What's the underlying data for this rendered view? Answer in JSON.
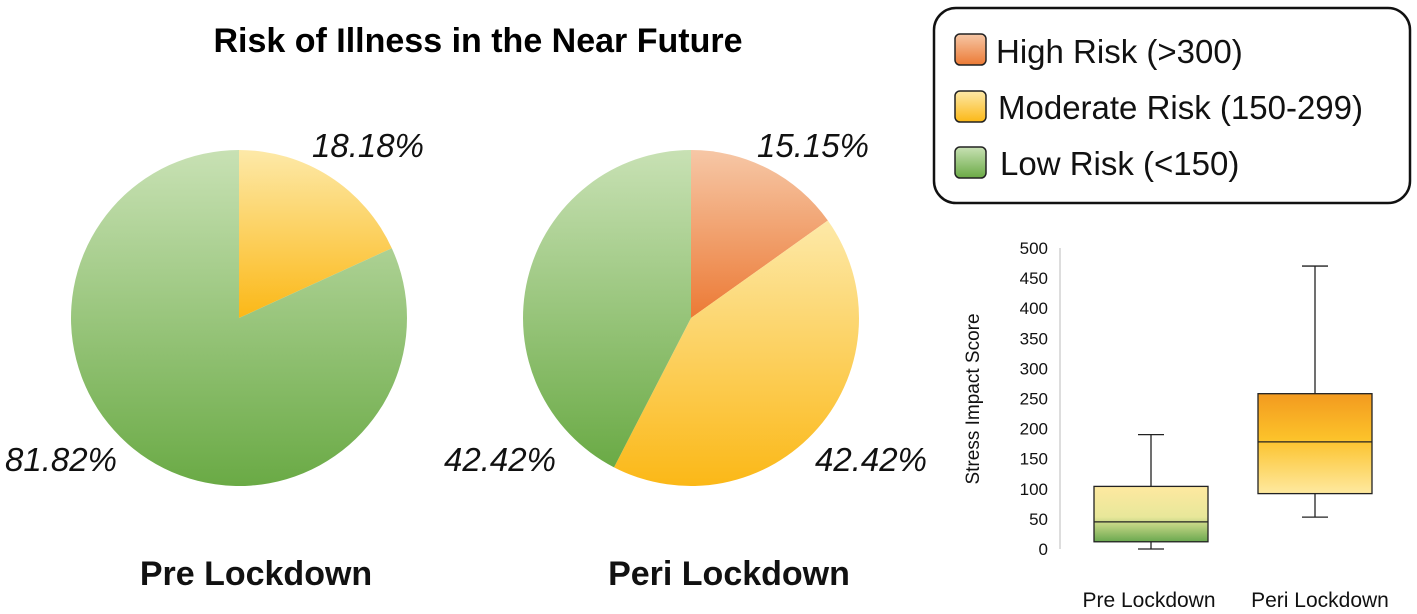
{
  "title": "Risk of Illness in the Near Future",
  "colors": {
    "high_light": "#f6c7a6",
    "high_dark": "#ec7a35",
    "moderate_light": "#fde9a8",
    "moderate_dark": "#fbb817",
    "low_light": "#c8e1b4",
    "low_dark": "#6aaa45",
    "box_orange": "#f39a1f",
    "box_yellow": "#fee9a0",
    "box_green": "#6aa84f"
  },
  "legend": {
    "items": [
      {
        "label": "High Risk (>300)",
        "key": "high"
      },
      {
        "label": "Moderate Risk (150-299)",
        "key": "moderate"
      },
      {
        "label": "Low Risk (<150)",
        "key": "low"
      }
    ]
  },
  "chart_data": [
    {
      "type": "pie",
      "title": "Pre Lockdown",
      "slices": [
        {
          "category": "Moderate Risk",
          "key": "moderate",
          "value": 18.18,
          "label": "18.18%"
        },
        {
          "category": "Low Risk",
          "key": "low",
          "value": 81.82,
          "label": "81.82%"
        }
      ]
    },
    {
      "type": "pie",
      "title": "Peri Lockdown",
      "slices": [
        {
          "category": "High Risk",
          "key": "high",
          "value": 15.15,
          "label": "15.15%"
        },
        {
          "category": "Moderate Risk",
          "key": "moderate",
          "value": 42.42,
          "label": "42.42%"
        },
        {
          "category": "Low Risk",
          "key": "low",
          "value": 42.42,
          "label": "42.42%"
        }
      ]
    },
    {
      "type": "box",
      "ylabel": "Stress Impact Score",
      "ylim": [
        0,
        500
      ],
      "yticks": [
        0,
        50,
        100,
        150,
        200,
        250,
        300,
        350,
        400,
        450,
        500
      ],
      "categories": [
        "Pre Lockdown",
        "Peri Lockdown"
      ],
      "boxes": [
        {
          "category": "Pre Lockdown",
          "min": 0,
          "q1": 12,
          "median": 45,
          "q3": 104,
          "max": 190
        },
        {
          "category": "Peri Lockdown",
          "min": 53,
          "q1": 92,
          "median": 178,
          "q3": 258,
          "max": 470
        }
      ]
    }
  ]
}
